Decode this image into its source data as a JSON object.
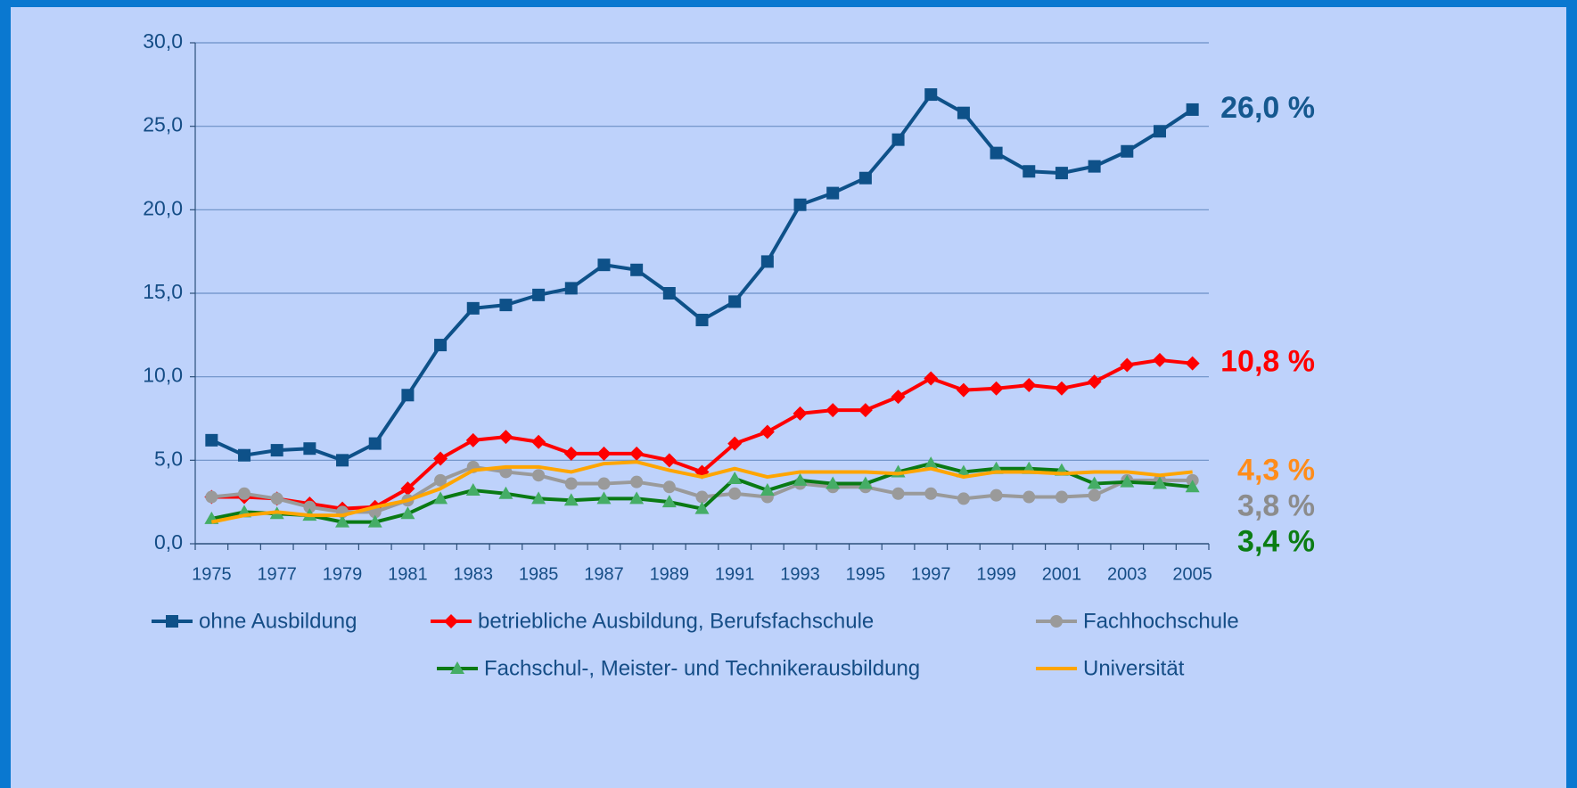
{
  "chart_data": {
    "type": "line",
    "categories": [
      "1975",
      null,
      "1977",
      null,
      "1979",
      null,
      "1981",
      null,
      "1983",
      null,
      "1985",
      null,
      "1987",
      null,
      "1989",
      null,
      "1991",
      null,
      "1993",
      null,
      "1995",
      null,
      "1997",
      null,
      "1999",
      null,
      "2001",
      null,
      "2003",
      null,
      "2005"
    ],
    "ylim": [
      0,
      30
    ],
    "yticks": [
      {
        "value": 0,
        "label": "0,0"
      },
      {
        "value": 5,
        "label": "5,0"
      },
      {
        "value": 10,
        "label": "10,0"
      },
      {
        "value": 15,
        "label": "15,0"
      },
      {
        "value": 20,
        "label": "20,0"
      },
      {
        "value": 25,
        "label": "25,0"
      },
      {
        "value": 30,
        "label": "30,0"
      }
    ],
    "grid": true,
    "series": [
      {
        "name": "ohne Ausbildung",
        "color": "#0e5189",
        "marker": "square",
        "label_color": "#15588f",
        "values": [
          6.2,
          5.3,
          5.6,
          5.7,
          5.0,
          6.0,
          8.9,
          11.9,
          14.1,
          14.3,
          14.9,
          15.3,
          16.7,
          16.4,
          15.0,
          13.4,
          14.5,
          16.9,
          20.3,
          21.0,
          21.9,
          24.2,
          26.9,
          25.8,
          23.4,
          22.3,
          22.2,
          22.6,
          23.5,
          24.7,
          26.0
        ],
        "value_labels": [
          null,
          null,
          null,
          null,
          null,
          null,
          null,
          null,
          null,
          null,
          null,
          null,
          null,
          null,
          null,
          null,
          null,
          null,
          null,
          null,
          null,
          null,
          null,
          null,
          null,
          null,
          null,
          null,
          null,
          null,
          "26,0 %"
        ]
      },
      {
        "name": "betriebliche Ausbildung, Berufsfachschule",
        "color": "#ff0000",
        "marker": "diamond",
        "label_color": "#ff0000",
        "values": [
          2.8,
          2.8,
          2.7,
          2.4,
          2.1,
          2.2,
          3.3,
          5.1,
          6.2,
          6.4,
          6.1,
          5.4,
          5.4,
          5.4,
          5.0,
          4.3,
          6.0,
          6.7,
          7.8,
          8.0,
          8.0,
          8.8,
          9.9,
          9.2,
          9.3,
          9.5,
          9.3,
          9.7,
          10.7,
          11.0,
          10.8
        ],
        "value_labels": [
          null,
          null,
          null,
          null,
          null,
          null,
          null,
          null,
          null,
          null,
          null,
          null,
          null,
          null,
          null,
          null,
          null,
          null,
          null,
          null,
          null,
          null,
          null,
          null,
          null,
          null,
          null,
          null,
          null,
          null,
          "10,8 %"
        ]
      },
      {
        "name": "Fachhochschule",
        "color": "#9a9a9a",
        "marker": "circle",
        "label_color": "#8c8c8c",
        "values": [
          2.8,
          3.0,
          2.7,
          2.2,
          1.9,
          1.9,
          2.6,
          3.8,
          4.6,
          4.3,
          4.1,
          3.6,
          3.6,
          3.7,
          3.4,
          2.8,
          3.0,
          2.8,
          3.6,
          3.4,
          3.4,
          3.0,
          3.0,
          2.7,
          2.9,
          2.8,
          2.8,
          2.9,
          3.8,
          3.8,
          3.8
        ],
        "value_labels": [
          null,
          null,
          null,
          null,
          null,
          null,
          null,
          null,
          null,
          null,
          null,
          null,
          null,
          null,
          null,
          null,
          null,
          null,
          null,
          null,
          null,
          null,
          null,
          null,
          null,
          null,
          null,
          null,
          null,
          null,
          "3,8 %"
        ]
      },
      {
        "name": "Fachschul-, Meister- und Technikerausbildung",
        "color": "#0a7a14",
        "marker": "triangle",
        "marker_color": "#45ad66",
        "label_color": "#0b7d14",
        "values": [
          1.5,
          1.9,
          1.8,
          1.7,
          1.3,
          1.3,
          1.8,
          2.7,
          3.2,
          3.0,
          2.7,
          2.6,
          2.7,
          2.7,
          2.5,
          2.1,
          3.9,
          3.2,
          3.8,
          3.6,
          3.6,
          4.3,
          4.8,
          4.3,
          4.5,
          4.5,
          4.4,
          3.6,
          3.7,
          3.6,
          3.4
        ],
        "value_labels": [
          null,
          null,
          null,
          null,
          null,
          null,
          null,
          null,
          null,
          null,
          null,
          null,
          null,
          null,
          null,
          null,
          null,
          null,
          null,
          null,
          null,
          null,
          null,
          null,
          null,
          null,
          null,
          null,
          null,
          null,
          "3,4 %"
        ]
      },
      {
        "name": "Universität",
        "color": "#ffa500",
        "marker": "none",
        "label_color": "#ff8c1a",
        "values": [
          1.3,
          1.7,
          1.9,
          1.7,
          1.7,
          2.2,
          2.6,
          3.3,
          4.4,
          4.6,
          4.6,
          4.3,
          4.8,
          4.9,
          4.4,
          4.0,
          4.5,
          4.0,
          4.3,
          4.3,
          4.3,
          4.2,
          4.5,
          4.0,
          4.3,
          4.3,
          4.2,
          4.3,
          4.3,
          4.1,
          4.3
        ],
        "value_labels": [
          null,
          null,
          null,
          null,
          null,
          null,
          null,
          null,
          null,
          null,
          null,
          null,
          null,
          null,
          null,
          null,
          null,
          null,
          null,
          null,
          null,
          null,
          null,
          null,
          null,
          null,
          null,
          null,
          null,
          null,
          "4,3 %"
        ]
      }
    ]
  }
}
